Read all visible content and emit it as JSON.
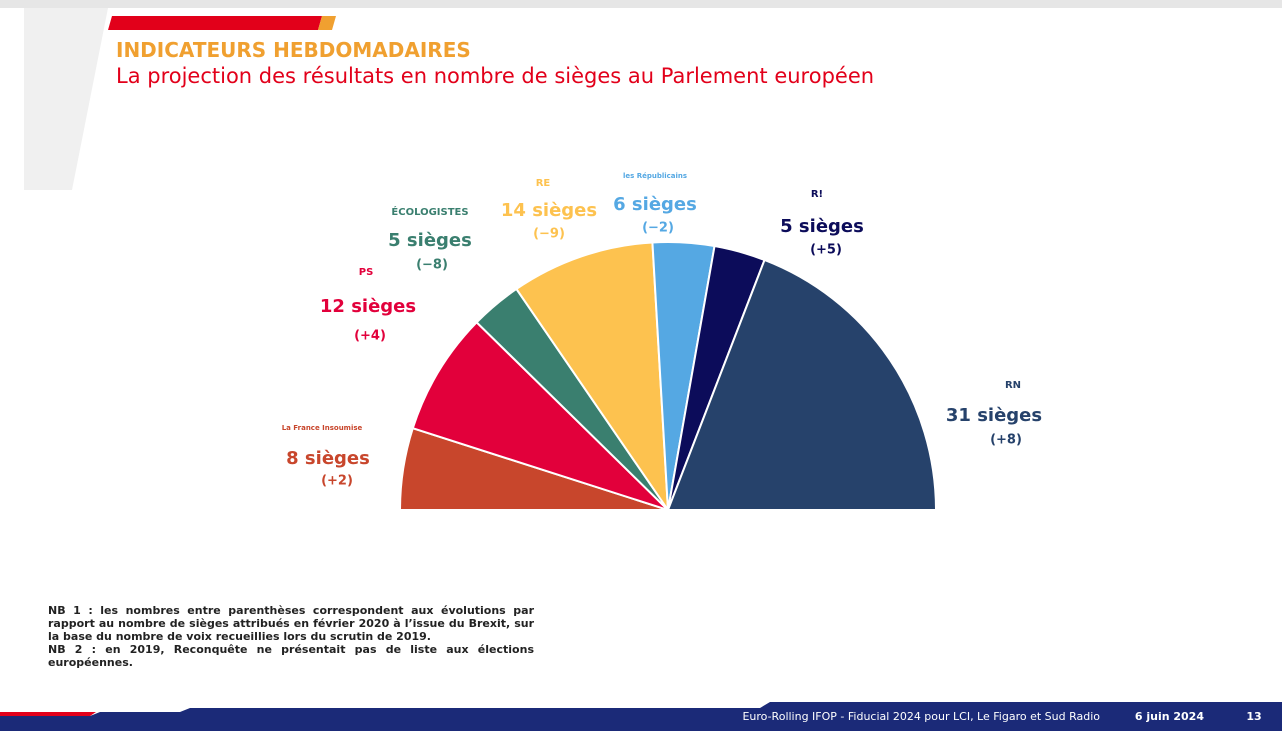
{
  "header": {
    "title": "INDICATEURS HEBDOMADAIRES",
    "subtitle": "La projection des résultats en nombre de sièges au Parlement européen"
  },
  "chart_data": {
    "type": "pie",
    "half": true,
    "values": [
      8,
      12,
      5,
      14,
      6,
      5,
      31
    ],
    "value_labels": [
      "8 sièges",
      "12 sièges",
      "5 sièges",
      "14 sièges",
      "6 sièges",
      "5 sièges",
      "31 sièges"
    ],
    "change_labels": [
      "(+2)",
      "(+4)",
      "(−8)",
      "(−9)",
      "(−2)",
      "(+5)",
      "(+8)"
    ],
    "logo_labels": [
      "La France Insoumise",
      "PS",
      "ÉCOLOGISTES",
      "RE",
      "les Républicains",
      "R!",
      "RN"
    ],
    "colors": [
      "#c8462c",
      "#e2003b",
      "#3a7f6f",
      "#fdc24f",
      "#55a8e3",
      "#0c0c5a",
      "#26426b"
    ]
  },
  "notes": [
    "NB 1 : les nombres entre parenthèses correspondent aux évolutions par rapport au nombre de sièges attribués en février 2020 à l’issue du Brexit, sur la base du nombre de voix recueillies lors du scrutin de 2019.",
    "NB 2 : en 2019, Reconquête ne présentait pas de liste aux élections européennes."
  ],
  "footer": {
    "source": "Euro-Rolling IFOP - Fiducial 2024 pour LCI, Le Figaro et Sud Radio",
    "date": "6 juin 2024",
    "page": "13"
  }
}
